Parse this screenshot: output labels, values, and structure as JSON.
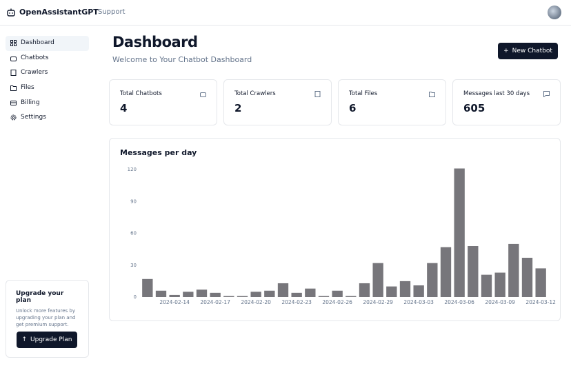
{
  "header": {
    "brand": "OpenAssistantGPT",
    "nav": [
      "Support"
    ]
  },
  "sidebar": {
    "items": [
      "Dashboard",
      "Chatbots",
      "Crawlers",
      "Files",
      "Billing",
      "Settings"
    ],
    "upgrade": {
      "title": "Upgrade your plan",
      "text": "Unlock more features by upgrading your plan and get premium support.",
      "button": "Upgrade Plan"
    }
  },
  "main": {
    "title": "Dashboard",
    "subtitle": "Welcome to Your Chatbot Dashboard",
    "button": "New Chatbot",
    "stats": [
      {
        "label": "Total Chatbots",
        "value": 4
      },
      {
        "label": "Total Crawlers",
        "value": 2
      },
      {
        "label": "Total Files",
        "value": 6
      },
      {
        "label": "Messages last 30 days",
        "value": 605
      }
    ]
  },
  "chart_data": {
    "type": "bar",
    "title": "Messages per day",
    "color": "#77767b",
    "categories": [
      null,
      null,
      "2024-02-14",
      null,
      null,
      "2024-02-17",
      null,
      null,
      "2024-02-20",
      null,
      null,
      "2024-02-23",
      null,
      null,
      "2024-02-26",
      null,
      null,
      "2024-02-29",
      null,
      null,
      "2024-03-03",
      null,
      null,
      "2024-03-06",
      null,
      null,
      "2024-03-09",
      null,
      null,
      "2024-03-12"
    ],
    "values": [
      17,
      6,
      2,
      5,
      7,
      4,
      1,
      1,
      5,
      6,
      13,
      4,
      8,
      1,
      6,
      1,
      13,
      32,
      10,
      15,
      11,
      32,
      47,
      121,
      48,
      21,
      23,
      50,
      37,
      27
    ],
    "ylim": [
      0,
      121
    ],
    "yticks": [
      0,
      30,
      60,
      90,
      120
    ],
    "grid": false
  }
}
